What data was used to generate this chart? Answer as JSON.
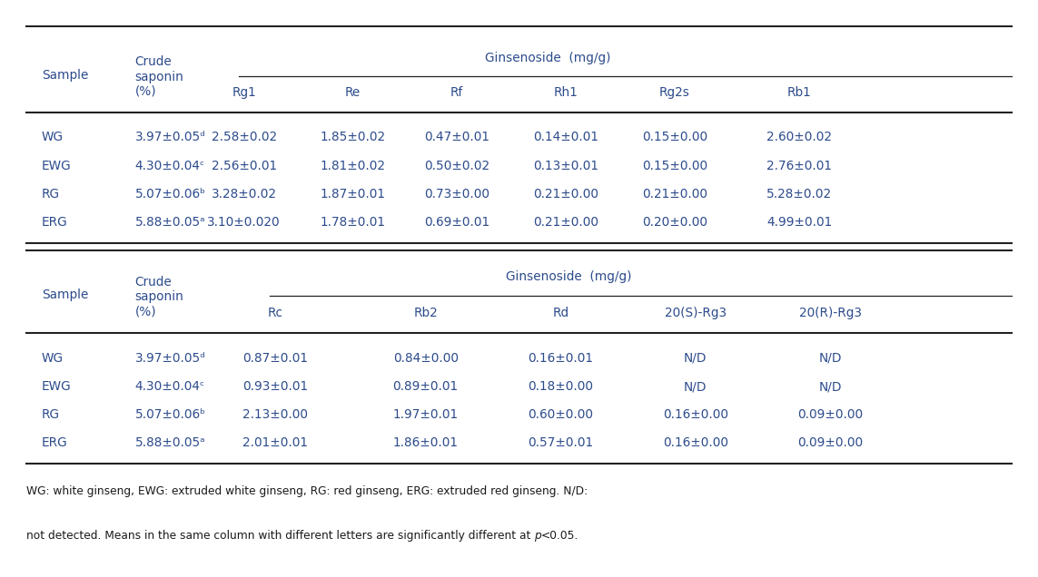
{
  "figsize": [
    11.43,
    6.36
  ],
  "dpi": 100,
  "bg_color": "#ffffff",
  "text_color": "#2c4b8c",
  "footnote_color": "#1a1a1a",
  "table1": {
    "rows": [
      [
        "WG",
        "3.97±0.05ᵈ",
        "2.58±0.02",
        "1.85±0.02",
        "0.47±0.01",
        "0.14±0.01",
        "0.15±0.00",
        "2.60±0.02"
      ],
      [
        "EWG",
        "4.30±0.04ᶜ",
        "2.56±0.01",
        "1.81±0.02",
        "0.50±0.02",
        "0.13±0.01",
        "0.15±0.00",
        "2.76±0.01"
      ],
      [
        "RG",
        "5.07±0.06ᵇ",
        "3.28±0.02",
        "1.87±0.01",
        "0.73±0.00",
        "0.21±0.00",
        "0.21±0.00",
        "5.28±0.02"
      ],
      [
        "ERG",
        "5.88±0.05ᵃ",
        "3.10±0.020",
        "1.78±0.01",
        "0.69±0.01",
        "0.21±0.00",
        "0.20±0.00",
        "4.99±0.01"
      ]
    ],
    "sub_headers": [
      "Rg1",
      "Re",
      "Rf",
      "Rh1",
      "Rg2s",
      "Rb1"
    ]
  },
  "table2": {
    "rows": [
      [
        "WG",
        "3.97±0.05ᵈ",
        "0.87±0.01",
        "0.84±0.00",
        "0.16±0.01",
        "N/D",
        "N/D"
      ],
      [
        "EWG",
        "4.30±0.04ᶜ",
        "0.93±0.01",
        "0.89±0.01",
        "0.18±0.00",
        "N/D",
        "N/D"
      ],
      [
        "RG",
        "5.07±0.06ᵇ",
        "2.13±0.00",
        "1.97±0.01",
        "0.60±0.00",
        "0.16±0.00",
        "0.09±0.00"
      ],
      [
        "ERG",
        "5.88±0.05ᵃ",
        "2.01±0.01",
        "1.86±0.01",
        "0.57±0.01",
        "0.16±0.00",
        "0.09±0.00"
      ]
    ],
    "sub_headers": [
      "Rc",
      "Rb2",
      "Rd",
      "20(S)-Rg3",
      "20(R)-Rg3"
    ]
  },
  "group_header": "Ginsenoside  (mg/g)",
  "footnote_line1": "WG: white ginseng, EWG: extruded white ginseng, RG: red ginseng, ERG: extruded red ginseng. N/D:",
  "footnote_line2_before_p": "not detected. Means in the same column with different letters are significantly different at ",
  "footnote_line2_after_p": "<0.05."
}
